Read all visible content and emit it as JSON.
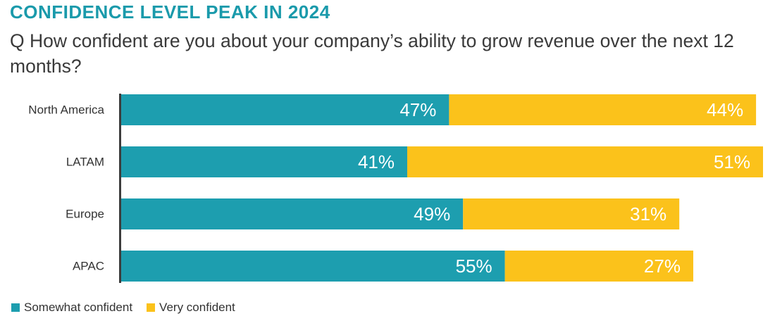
{
  "chart_data": {
    "type": "bar",
    "orientation": "horizontal",
    "stacked": true,
    "title": "CONFIDENCE LEVEL PEAK IN 2024",
    "subtitle": "Q How confident are you about your company’s ability to grow revenue over the next 12 months?",
    "categories": [
      "North America",
      "LATAM",
      "Europe",
      "APAC"
    ],
    "series": [
      {
        "name": "Somewhat confident",
        "color": "#1d9eaf",
        "values": [
          47,
          41,
          49,
          55
        ],
        "labels": [
          "47%",
          "41%",
          "49%",
          "55%"
        ]
      },
      {
        "name": "Very confident",
        "color": "#fbc21b",
        "values": [
          44,
          51,
          31,
          27
        ],
        "labels": [
          "44%",
          "51%",
          "31%",
          "27%"
        ]
      }
    ],
    "xlim": [
      0,
      92
    ],
    "unit": "%",
    "grid": false,
    "legend_position": "bottom-left",
    "axis_color": "#3d3d3d"
  }
}
